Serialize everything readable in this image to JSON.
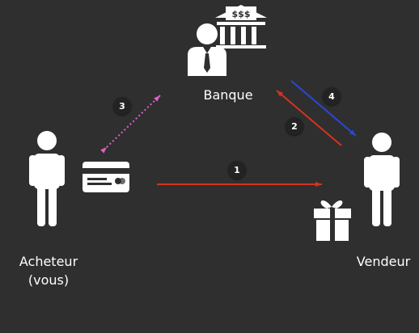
{
  "labels": {
    "bank": "Banque",
    "buyer_line1": "Acheteur",
    "buyer_line2": "(vous)",
    "seller": "Vendeur"
  },
  "steps": [
    {
      "number": "1",
      "color": "#d9321f"
    },
    {
      "number": "2",
      "color": "#d9321f"
    },
    {
      "number": "3",
      "color": "#e060c8"
    },
    {
      "number": "4",
      "color": "#2848d8"
    }
  ],
  "bank_sign": "$$$",
  "colors": {
    "background": "#2f2f2f",
    "figures": "#ffffff",
    "badge": "#232323"
  },
  "icons": [
    "person-icon",
    "bank-icon",
    "credit-card-icon",
    "gift-icon"
  ]
}
